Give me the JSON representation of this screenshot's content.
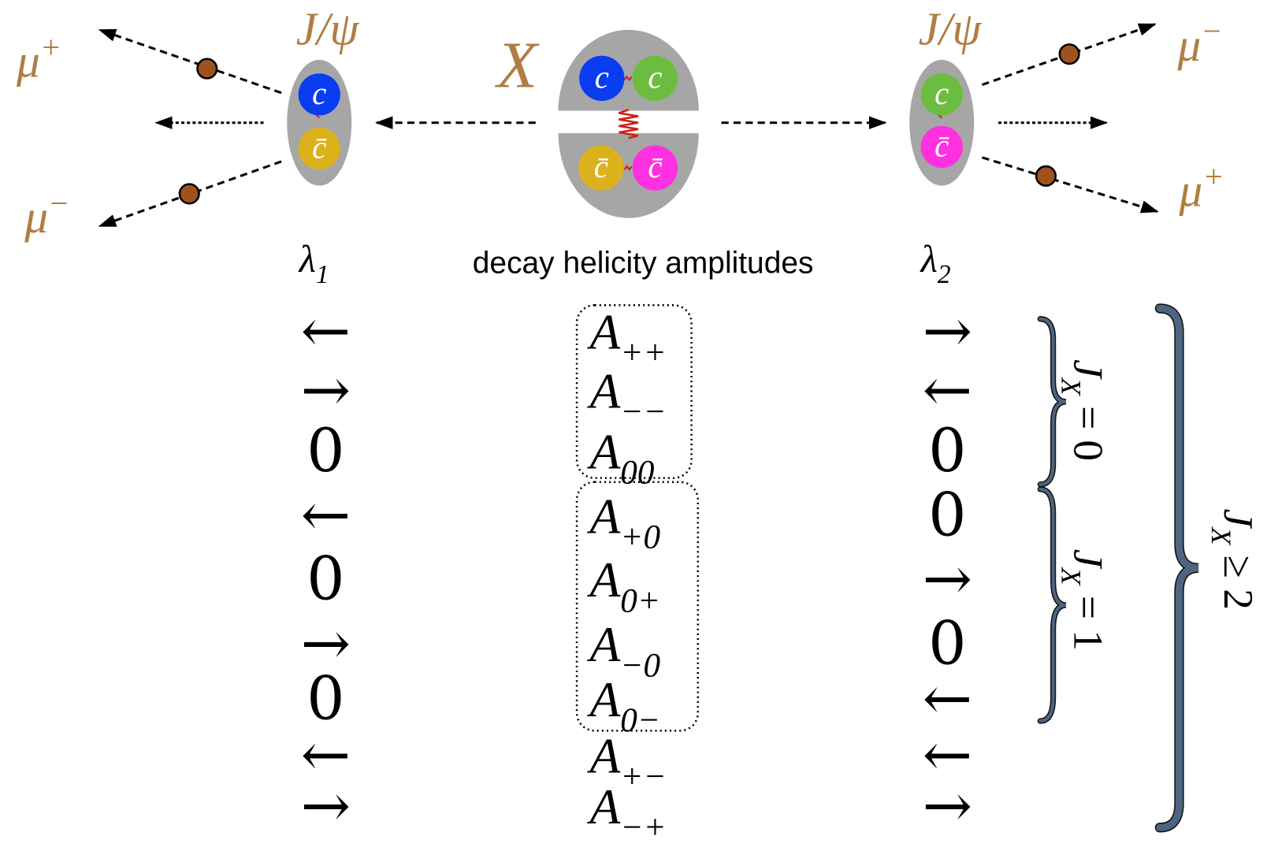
{
  "particles": {
    "x_label": "X",
    "jpsi_left": "J/ψ",
    "jpsi_right": "J/ψ",
    "muons": [
      {
        "base": "μ",
        "sup": "+"
      },
      {
        "base": "μ",
        "sup": "−"
      },
      {
        "base": "μ",
        "sup": "−"
      },
      {
        "base": "μ",
        "sup": "+"
      }
    ],
    "quarks": [
      "c",
      "c̄",
      "c",
      "c",
      "c̄",
      "c̄",
      "c",
      "c̄"
    ]
  },
  "columns": {
    "lambda1": {
      "base": "λ",
      "sub": "1"
    },
    "amplitudes": "decay helicity amplitudes",
    "lambda2": {
      "base": "λ",
      "sub": "2"
    }
  },
  "rows": [
    {
      "lambda1": "←",
      "amplitude": {
        "base": "A",
        "sub": "++"
      },
      "lambda2": "→"
    },
    {
      "lambda1": "→",
      "amplitude": {
        "base": "A",
        "sub": "−−"
      },
      "lambda2": "←"
    },
    {
      "lambda1": "0",
      "amplitude": {
        "base": "A",
        "sub": "00"
      },
      "lambda2": "0"
    },
    {
      "lambda1": "←",
      "amplitude": {
        "base": "A",
        "sub": "+0"
      },
      "lambda2": "0"
    },
    {
      "lambda1": "0",
      "amplitude": {
        "base": "A",
        "sub": "0+"
      },
      "lambda2": "→"
    },
    {
      "lambda1": "→",
      "amplitude": {
        "base": "A",
        "sub": "−0"
      },
      "lambda2": "0"
    },
    {
      "lambda1": "0",
      "amplitude": {
        "base": "A",
        "sub": "0−"
      },
      "lambda2": "←"
    },
    {
      "lambda1": "←",
      "amplitude": {
        "base": "A",
        "sub": "+−"
      },
      "lambda2": "←"
    },
    {
      "lambda1": "→",
      "amplitude": {
        "base": "A",
        "sub": "−+"
      },
      "lambda2": "→"
    }
  ],
  "groups": [
    {
      "base": "J",
      "sub": "X",
      "rest": " = 0"
    },
    {
      "base": "J",
      "sub": "X",
      "rest": " = 1"
    },
    {
      "base": "J",
      "sub": "X",
      "rest": " ≥ 2"
    }
  ]
}
